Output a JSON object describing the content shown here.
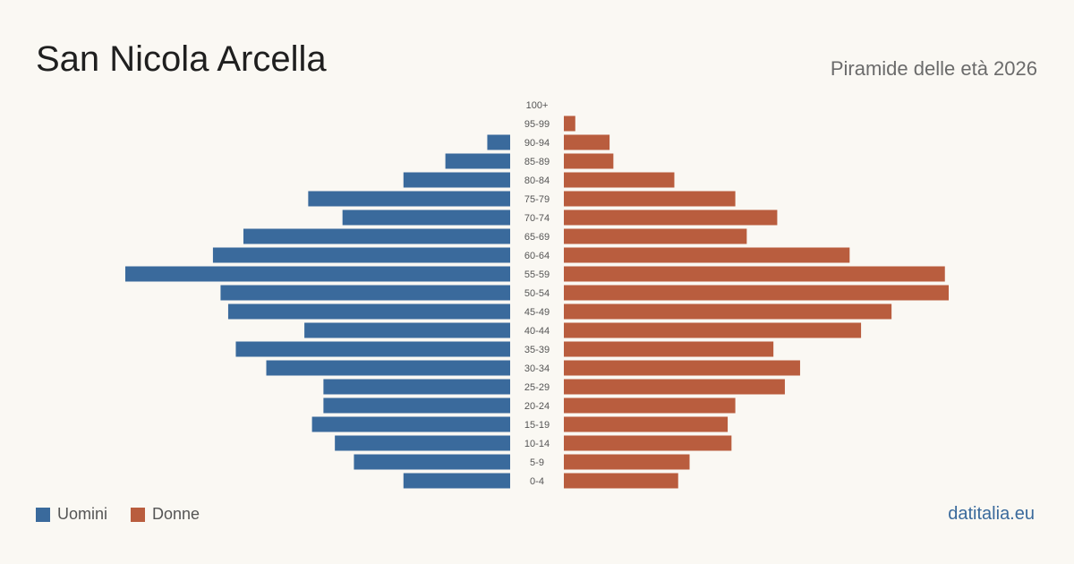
{
  "header": {
    "title": "San Nicola Arcella",
    "subtitle": "Piramide delle età 2026"
  },
  "legend": {
    "men_label": "Uomini",
    "women_label": "Donne"
  },
  "footer": {
    "source": "datitalia.eu"
  },
  "colors": {
    "men": "#3a6a9c",
    "women": "#b95d3e"
  },
  "chart_data": {
    "type": "bar",
    "orientation": "horizontal-pyramid",
    "categories": [
      "100+",
      "95-99",
      "90-94",
      "85-89",
      "80-84",
      "75-79",
      "70-74",
      "65-69",
      "60-64",
      "55-59",
      "50-54",
      "45-49",
      "40-44",
      "35-39",
      "30-34",
      "25-29",
      "20-24",
      "15-19",
      "10-14",
      "5-9",
      "0-4"
    ],
    "series": [
      {
        "name": "Uomini",
        "values": [
          0,
          0,
          6,
          17,
          28,
          53,
          44,
          70,
          78,
          101,
          76,
          74,
          54,
          72,
          64,
          49,
          49,
          52,
          46,
          41,
          28
        ]
      },
      {
        "name": "Donne",
        "values": [
          0,
          3,
          12,
          13,
          29,
          45,
          56,
          48,
          75,
          100,
          101,
          86,
          78,
          55,
          62,
          58,
          45,
          43,
          44,
          33,
          30
        ]
      }
    ],
    "xlim": [
      0,
      101
    ],
    "legend_position": "bottom-left",
    "grid": false
  }
}
